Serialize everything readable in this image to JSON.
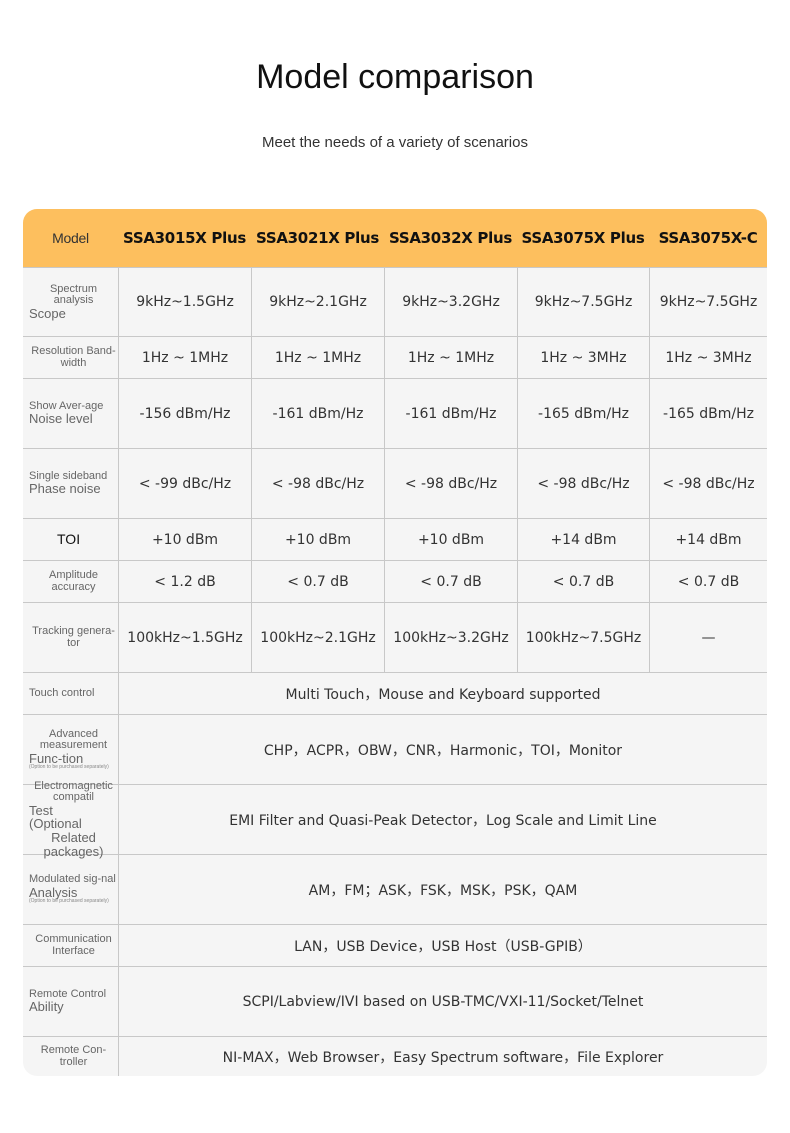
{
  "title": "Model comparison",
  "subtitle": "Meet the needs of a variety of scenarios",
  "colors": {
    "header": "#fdbf5e",
    "cell": "#f5f5f5"
  },
  "header": [
    "Model",
    "SSA3015X Plus",
    "SSA3021X Plus",
    "SSA3032X Plus",
    "SSA3075X Plus",
    "SSA3075X-C"
  ],
  "rows": [
    {
      "label": [
        "Spectrum analysis",
        "Scope"
      ],
      "values": [
        "9kHz~1.5GHz",
        "9kHz~2.1GHz",
        "9kHz~3.2GHz",
        "9kHz~7.5GHz",
        "9kHz~7.5GHz"
      ]
    },
    {
      "label": [
        "Resolution Band-width"
      ],
      "values": [
        "1Hz ~ 1MHz",
        "1Hz ~ 1MHz",
        "1Hz ~ 1MHz",
        "1Hz ~ 3MHz",
        "1Hz ~ 3MHz"
      ]
    },
    {
      "label": [
        "Show Aver-age",
        "Noise level"
      ],
      "values": [
        "-156 dBm/Hz",
        "-161 dBm/Hz",
        "-161 dBm/Hz",
        "-165 dBm/Hz",
        "-165 dBm/Hz"
      ]
    },
    {
      "label": [
        "Single sideband",
        "Phase noise"
      ],
      "values": [
        "< -99 dBc/Hz",
        "< -98 dBc/Hz",
        "< -98 dBc/Hz",
        "< -98 dBc/Hz",
        "< -98 dBc/Hz"
      ]
    },
    {
      "label": [
        "TOI"
      ],
      "values": [
        "+10 dBm",
        "+10 dBm",
        "+10 dBm",
        "+14 dBm",
        "+14 dBm"
      ]
    },
    {
      "label": [
        "Amplitude accuracy"
      ],
      "values": [
        "< 1.2 dB",
        "< 0.7 dB",
        "< 0.7 dB",
        "< 0.7 dB",
        "< 0.7 dB"
      ]
    },
    {
      "label": [
        "Tracking genera-tor"
      ],
      "values": [
        "100kHz~1.5GHz",
        "100kHz~2.1GHz",
        "100kHz~3.2GHz",
        "100kHz~7.5GHz",
        "—"
      ]
    }
  ],
  "span_rows": [
    {
      "label": [
        "Touch control"
      ],
      "value": "Multi Touch，Mouse and Keyboard supported"
    },
    {
      "label": [
        "Advanced measurement",
        "Func-tion",
        "(Option to be purchased separately)"
      ],
      "value": "CHP，ACPR，OBW，CNR，Harmonic，TOI，Monitor"
    },
    {
      "label": [
        "Electromagnetic compatil",
        "Test",
        "(Optional",
        "Related packages)"
      ],
      "value": "EMI Filter and Quasi-Peak Detector，Log Scale and Limit Line"
    },
    {
      "label": [
        "Modulated sig-nal",
        "Analysis",
        "(Option to be purchased separately)"
      ],
      "value": "AM，FM；ASK，FSK，MSK，PSK，QAM"
    },
    {
      "label": [
        "Communication Interface"
      ],
      "value": "LAN，USB Device，USB Host（USB-GPIB）"
    },
    {
      "label": [
        "Remote Control",
        "Ability"
      ],
      "value": "SCPI/Labview/IVI based on USB-TMC/VXI-11/Socket/Telnet"
    },
    {
      "label": [
        "Remote Con-troller"
      ],
      "value": "NI-MAX，Web Browser，Easy Spectrum software，File Explorer"
    }
  ]
}
